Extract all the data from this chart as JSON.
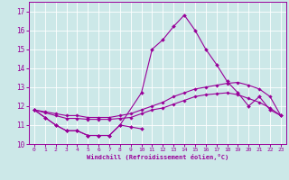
{
  "xlabel": "Windchill (Refroidissement éolien,°C)",
  "bg_color": "#cce8e8",
  "grid_color": "#ffffff",
  "line_color": "#990099",
  "x": [
    0,
    1,
    2,
    3,
    4,
    5,
    6,
    7,
    8,
    9,
    10,
    11,
    12,
    13,
    14,
    15,
    16,
    17,
    18,
    19,
    20,
    21,
    22,
    23
  ],
  "line_peak": [
    null,
    null,
    null,
    null,
    null,
    null,
    null,
    null,
    null,
    null,
    null,
    15.0,
    15.5,
    16.2,
    16.8,
    16.0,
    15.0,
    14.2,
    13.3,
    12.7,
    null,
    null,
    null,
    null
  ],
  "line_main": [
    11.8,
    11.4,
    11.0,
    10.7,
    10.7,
    10.45,
    10.45,
    10.45,
    11.0,
    null,
    12.7,
    15.0,
    15.5,
    16.2,
    16.8,
    16.0,
    15.0,
    14.2,
    13.3,
    12.7,
    12.0,
    12.5,
    11.8,
    11.5
  ],
  "line_low": [
    11.8,
    11.4,
    11.0,
    10.7,
    10.7,
    10.45,
    10.45,
    10.45,
    11.0,
    10.9,
    10.8,
    null,
    null,
    null,
    null,
    null,
    null,
    null,
    null,
    null,
    null,
    null,
    null,
    null
  ],
  "line_upper": [
    11.8,
    11.7,
    11.6,
    11.5,
    11.5,
    11.4,
    11.4,
    11.4,
    11.5,
    11.6,
    11.8,
    12.0,
    12.2,
    12.5,
    12.7,
    12.9,
    13.0,
    13.1,
    13.2,
    13.25,
    13.1,
    12.9,
    12.5,
    11.5
  ],
  "line_mid": [
    11.8,
    11.65,
    11.5,
    11.35,
    11.35,
    11.3,
    11.3,
    11.3,
    11.35,
    11.4,
    11.6,
    11.8,
    11.9,
    12.1,
    12.3,
    12.5,
    12.6,
    12.65,
    12.7,
    12.6,
    12.4,
    12.2,
    11.9,
    11.5
  ],
  "ylim": [
    10,
    17.5
  ],
  "xlim": [
    -0.5,
    23.5
  ],
  "yticks": [
    10,
    11,
    12,
    13,
    14,
    15,
    16,
    17
  ],
  "xticks": [
    0,
    1,
    2,
    3,
    4,
    5,
    6,
    7,
    8,
    9,
    10,
    11,
    12,
    13,
    14,
    15,
    16,
    17,
    18,
    19,
    20,
    21,
    22,
    23
  ]
}
